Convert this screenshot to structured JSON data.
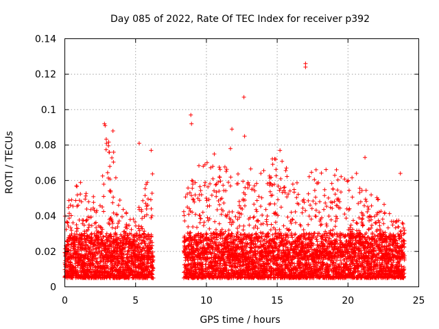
{
  "chart_data": {
    "type": "scatter",
    "title": "Day 085 of 2022, Rate Of TEC Index for receiver p392",
    "xlabel": "GPS time / hours",
    "ylabel": "ROTI / TECUs",
    "xlim": [
      0,
      25
    ],
    "ylim": [
      0,
      0.14
    ],
    "xticks": [
      0,
      5,
      10,
      15,
      20,
      25
    ],
    "yticks": [
      0,
      0.02,
      0.04,
      0.06,
      0.08,
      0.1,
      0.12,
      0.14
    ],
    "xtick_labels": [
      "0",
      "5",
      "10",
      "15",
      "20",
      "25"
    ],
    "ytick_labels": [
      "0",
      "0.02",
      "0.04",
      "0.06",
      "0.08",
      "0.1",
      "0.12",
      "0.14"
    ],
    "grid": true,
    "marker": "+",
    "color": "#ff0000",
    "gaps_hours": [
      [
        6.25,
        8.4
      ]
    ],
    "bulk_band": {
      "y_low": 0.005,
      "y_median": 0.016
    },
    "envelope": [
      {
        "x": 0.0,
        "y_max": 0.045
      },
      {
        "x": 1.0,
        "y_max": 0.06
      },
      {
        "x": 2.5,
        "y_max": 0.05
      },
      {
        "x": 3.0,
        "y_max": 0.09
      },
      {
        "x": 4.0,
        "y_max": 0.045
      },
      {
        "x": 5.0,
        "y_max": 0.04
      },
      {
        "x": 6.2,
        "y_max": 0.077
      },
      {
        "x": 8.5,
        "y_max": 0.055
      },
      {
        "x": 9.5,
        "y_max": 0.07
      },
      {
        "x": 10.5,
        "y_max": 0.078
      },
      {
        "x": 12.5,
        "y_max": 0.065
      },
      {
        "x": 14.5,
        "y_max": 0.075
      },
      {
        "x": 16.8,
        "y_max": 0.067
      },
      {
        "x": 19.5,
        "y_max": 0.066
      },
      {
        "x": 21.5,
        "y_max": 0.055
      },
      {
        "x": 24.0,
        "y_max": 0.035
      }
    ],
    "outliers": [
      {
        "x": 2.8,
        "y": 0.092
      },
      {
        "x": 2.85,
        "y": 0.091
      },
      {
        "x": 3.4,
        "y": 0.088
      },
      {
        "x": 3.45,
        "y": 0.076
      },
      {
        "x": 2.95,
        "y": 0.081
      },
      {
        "x": 5.25,
        "y": 0.081
      },
      {
        "x": 6.1,
        "y": 0.077
      },
      {
        "x": 8.9,
        "y": 0.097
      },
      {
        "x": 8.95,
        "y": 0.092
      },
      {
        "x": 9.9,
        "y": 0.069
      },
      {
        "x": 11.8,
        "y": 0.089
      },
      {
        "x": 11.7,
        "y": 0.078
      },
      {
        "x": 12.65,
        "y": 0.107
      },
      {
        "x": 12.7,
        "y": 0.085
      },
      {
        "x": 15.2,
        "y": 0.077
      },
      {
        "x": 14.9,
        "y": 0.072
      },
      {
        "x": 17.0,
        "y": 0.126
      },
      {
        "x": 17.0,
        "y": 0.124
      },
      {
        "x": 21.2,
        "y": 0.073
      },
      {
        "x": 23.7,
        "y": 0.064
      },
      {
        "x": 20.6,
        "y": 0.064
      }
    ]
  }
}
